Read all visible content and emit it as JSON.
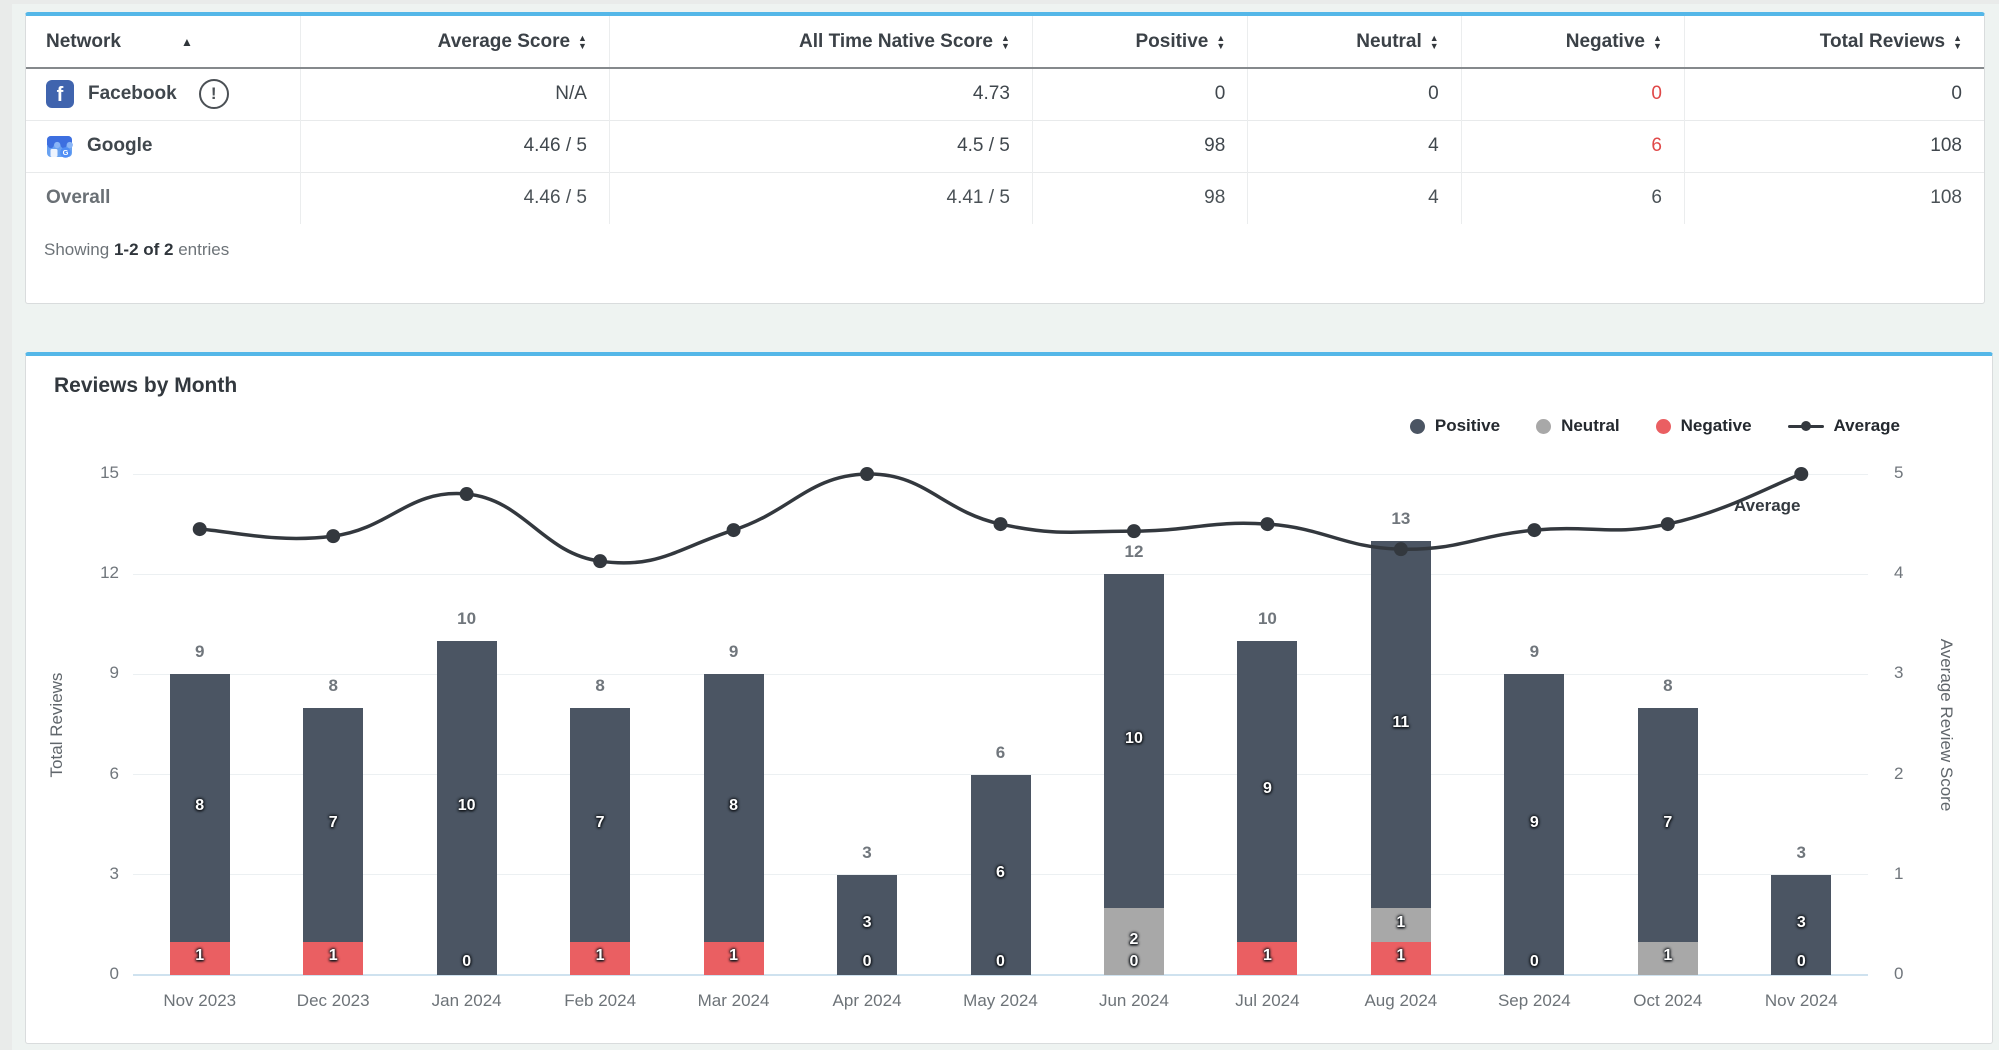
{
  "theme": {
    "card_accent": "#54b7e8",
    "negative_text": "#e04848"
  },
  "table": {
    "columns": [
      {
        "label": "Network",
        "align": "left",
        "sort": "asc"
      },
      {
        "label": "Average Score",
        "align": "right",
        "sort": "both"
      },
      {
        "label": "All Time Native Score",
        "align": "right",
        "sort": "both"
      },
      {
        "label": "Positive",
        "align": "right",
        "sort": "both"
      },
      {
        "label": "Neutral",
        "align": "right",
        "sort": "both"
      },
      {
        "label": "Negative",
        "align": "right",
        "sort": "both"
      },
      {
        "label": "Total Reviews",
        "align": "right",
        "sort": "both"
      }
    ],
    "rows": [
      {
        "network": "Facebook",
        "icon": "facebook-icon",
        "warning": true,
        "values": {
          "avg": "N/A",
          "native": "4.73",
          "pos": "0",
          "neu": "0",
          "neg": "0",
          "total": "0"
        }
      },
      {
        "network": "Google",
        "icon": "google-icon",
        "warning": false,
        "values": {
          "avg": "4.46 / 5",
          "native": "4.5 / 5",
          "pos": "98",
          "neu": "4",
          "neg": "6",
          "total": "108"
        }
      }
    ],
    "overall_row": {
      "network": "Overall",
      "values": {
        "avg": "4.46 / 5",
        "native": "4.41 / 5",
        "pos": "98",
        "neu": "4",
        "neg": "6",
        "total": "108"
      }
    },
    "showing": {
      "prefix": "Showing",
      "bold": "1-2 of 2",
      "suffix": "entries"
    }
  },
  "chart": {
    "title": "Reviews by Month",
    "legend": [
      {
        "label": "Positive",
        "color": "#4b5563",
        "type": "dot"
      },
      {
        "label": "Neutral",
        "color": "#a8a8a8",
        "type": "dot"
      },
      {
        "label": "Negative",
        "color": "#ea5f62",
        "type": "dot"
      },
      {
        "label": "Average",
        "color": "#33383e",
        "type": "line"
      }
    ],
    "y_left": {
      "label": "Total Reviews",
      "ticks": [
        0,
        3,
        6,
        9,
        12,
        15
      ],
      "max": 15
    },
    "y_right": {
      "label": "Average Review Score",
      "ticks": [
        0,
        1,
        2,
        3,
        4,
        5
      ],
      "max": 5
    },
    "inline_series_label": "Average"
  },
  "chart_data": {
    "type": "bar",
    "stacked": true,
    "title": "Reviews by Month",
    "categories": [
      "Nov 2023",
      "Dec 2023",
      "Jan 2024",
      "Feb 2024",
      "Mar 2024",
      "Apr 2024",
      "May 2024",
      "Jun 2024",
      "Jul 2024",
      "Aug 2024",
      "Sep 2024",
      "Oct 2024",
      "Nov 2024"
    ],
    "series": [
      {
        "name": "Positive",
        "type": "bar",
        "color": "#4b5563",
        "values": [
          8,
          7,
          10,
          7,
          8,
          3,
          6,
          10,
          9,
          11,
          9,
          7,
          3
        ]
      },
      {
        "name": "Neutral",
        "type": "bar",
        "color": "#a8a8a8",
        "values": [
          0,
          0,
          0,
          0,
          0,
          0,
          0,
          2,
          0,
          1,
          0,
          1,
          0
        ]
      },
      {
        "name": "Negative",
        "type": "bar",
        "color": "#ea5f62",
        "values": [
          1,
          1,
          0,
          1,
          1,
          0,
          0,
          0,
          1,
          1,
          0,
          0,
          0
        ]
      },
      {
        "name": "Average",
        "type": "line",
        "axis": "right",
        "color": "#33383e",
        "values": [
          4.45,
          4.38,
          4.8,
          4.13,
          4.44,
          5,
          4.5,
          4.43,
          4.5,
          4.25,
          4.44,
          4.5,
          5
        ]
      }
    ],
    "totals": [
      9,
      8,
      10,
      8,
      9,
      3,
      6,
      12,
      10,
      13,
      9,
      8,
      3
    ],
    "bar_labels": [
      [
        {
          "t": "8",
          "seg": "positive"
        },
        {
          "t": "1",
          "seg": "negative"
        }
      ],
      [
        {
          "t": "7",
          "seg": "positive"
        },
        {
          "t": "1",
          "seg": "negative"
        }
      ],
      [
        {
          "t": "10",
          "seg": "positive"
        },
        {
          "t": "0",
          "seg": "zero"
        }
      ],
      [
        {
          "t": "7",
          "seg": "positive"
        },
        {
          "t": "1",
          "seg": "negative"
        }
      ],
      [
        {
          "t": "8",
          "seg": "positive"
        },
        {
          "t": "1",
          "seg": "negative"
        }
      ],
      [
        {
          "t": "3",
          "seg": "positive"
        },
        {
          "t": "0",
          "seg": "zero"
        }
      ],
      [
        {
          "t": "6",
          "seg": "positive"
        },
        {
          "t": "0",
          "seg": "zero"
        }
      ],
      [
        {
          "t": "10",
          "seg": "positive"
        },
        {
          "t": "2",
          "seg": "neutral"
        },
        {
          "t": "0",
          "seg": "zero"
        }
      ],
      [
        {
          "t": "9",
          "seg": "positive"
        },
        {
          "t": "1",
          "seg": "negative"
        }
      ],
      [
        {
          "t": "11",
          "seg": "positive"
        },
        {
          "t": "1",
          "seg": "neutral"
        },
        {
          "t": "1",
          "seg": "negative"
        }
      ],
      [
        {
          "t": "9",
          "seg": "positive"
        },
        {
          "t": "0",
          "seg": "zero"
        }
      ],
      [
        {
          "t": "7",
          "seg": "positive"
        },
        {
          "t": "1",
          "seg": "neutral"
        }
      ],
      [
        {
          "t": "3",
          "seg": "positive"
        },
        {
          "t": "0",
          "seg": "zero"
        }
      ]
    ],
    "ylim_left": [
      0,
      15
    ],
    "ylim_right": [
      0,
      5
    ],
    "ylabel_left": "Total Reviews",
    "ylabel_right": "Average Review Score",
    "grid": "horizontal",
    "legend_position": "top-right"
  }
}
